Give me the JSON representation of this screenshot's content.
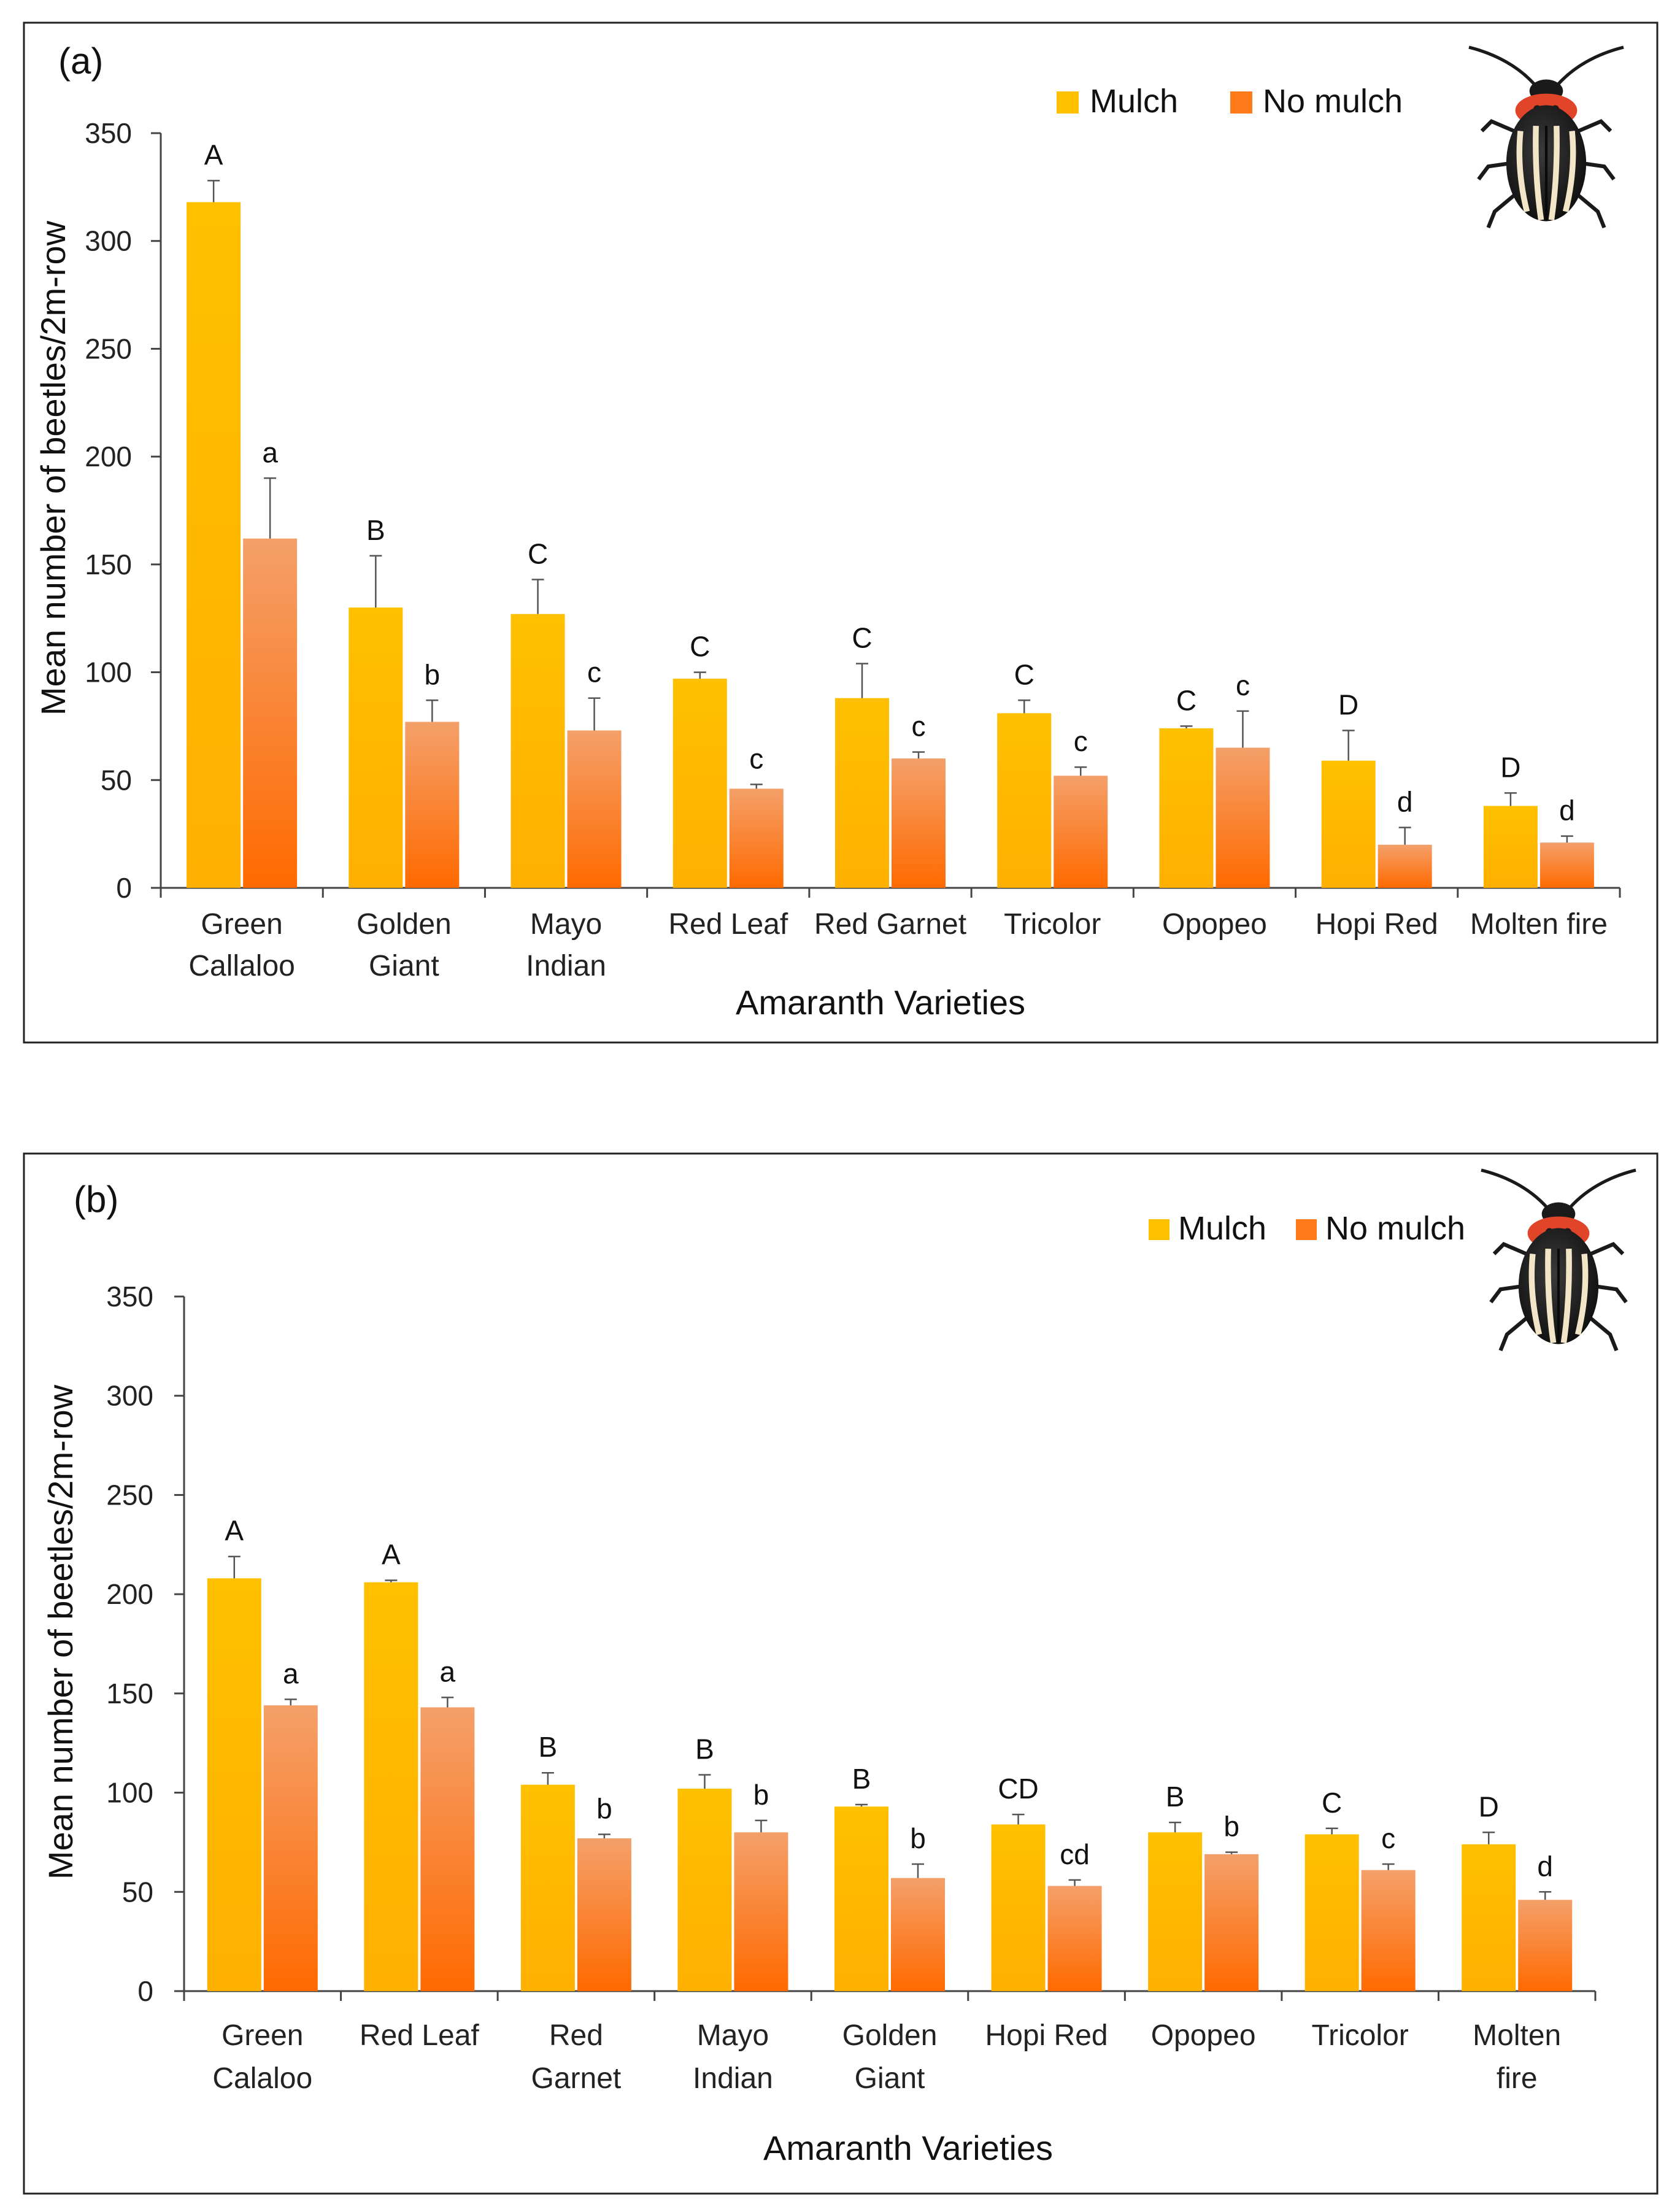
{
  "colors": {
    "mulch_top": "#ffc000",
    "mulch_bottom": "#ffb000",
    "nomulch_top": "#f4a06a",
    "nomulch_bottom": "#ff6a00",
    "axis": "#444444",
    "frame": "#222222"
  },
  "icons": {
    "beetle": "beetle-icon"
  },
  "chart_data": [
    {
      "type": "bar",
      "panel_label": "(a)",
      "xlabel": "Amaranth Varieties",
      "ylabel": "Mean  number of beetles/2m-row",
      "ylim": [
        0,
        350
      ],
      "yticks": [
        "0",
        "50",
        "100",
        "150",
        "200",
        "250",
        "300",
        "350"
      ],
      "legend_position": "top-right",
      "categories": [
        "Green|Callaloo",
        "Golden|Giant",
        "Mayo|Indian",
        "Red Leaf",
        "Red Garnet",
        "Tricolor",
        "Opopeo",
        "Hopi Red",
        "Molten fire"
      ],
      "series": [
        {
          "name": "Mulch",
          "values": [
            318,
            130,
            127,
            97,
            88,
            81,
            74,
            59,
            38
          ],
          "errors": [
            10,
            24,
            16,
            3,
            16,
            6,
            1,
            14,
            6
          ],
          "letters": [
            "A",
            "B",
            "C",
            "C",
            "C",
            "C",
            "C",
            "D",
            "D"
          ]
        },
        {
          "name": "No mulch",
          "values": [
            162,
            77,
            73,
            46,
            60,
            52,
            65,
            20,
            21
          ],
          "errors": [
            28,
            10,
            15,
            2,
            3,
            4,
            17,
            8,
            3
          ],
          "letters": [
            "a",
            "b",
            "c",
            "c",
            "c",
            "c",
            "c",
            "d",
            "d"
          ]
        }
      ]
    },
    {
      "type": "bar",
      "panel_label": "(b)",
      "xlabel": "Amaranth Varieties",
      "ylabel": "Mean  number of beetles/2m-row",
      "ylim": [
        0,
        350
      ],
      "yticks": [
        "0",
        "50",
        "100",
        "150",
        "200",
        "250",
        "300",
        "350"
      ],
      "legend_position": "top-right",
      "categories": [
        "Green|Calaloo",
        "Red Leaf",
        "Red|Garnet",
        "Mayo|Indian",
        "Golden|Giant",
        "Hopi Red",
        "Opopeo",
        "Tricolor",
        "Molten|fire"
      ],
      "series": [
        {
          "name": "Mulch",
          "values": [
            208,
            206,
            104,
            102,
            93,
            84,
            80,
            79,
            74
          ],
          "errors": [
            11,
            1,
            6,
            7,
            1,
            5,
            5,
            3,
            6
          ],
          "letters": [
            "A",
            "A",
            "B",
            "B",
            "B",
            "CD",
            "B",
            "C",
            "D"
          ]
        },
        {
          "name": "No mulch",
          "values": [
            144,
            143,
            77,
            80,
            57,
            53,
            69,
            61,
            46
          ],
          "errors": [
            3,
            5,
            2,
            6,
            7,
            3,
            1,
            3,
            4
          ],
          "letters": [
            "a",
            "a",
            "b",
            "b",
            "b",
            "cd",
            "b",
            "c",
            "d"
          ]
        }
      ]
    }
  ]
}
